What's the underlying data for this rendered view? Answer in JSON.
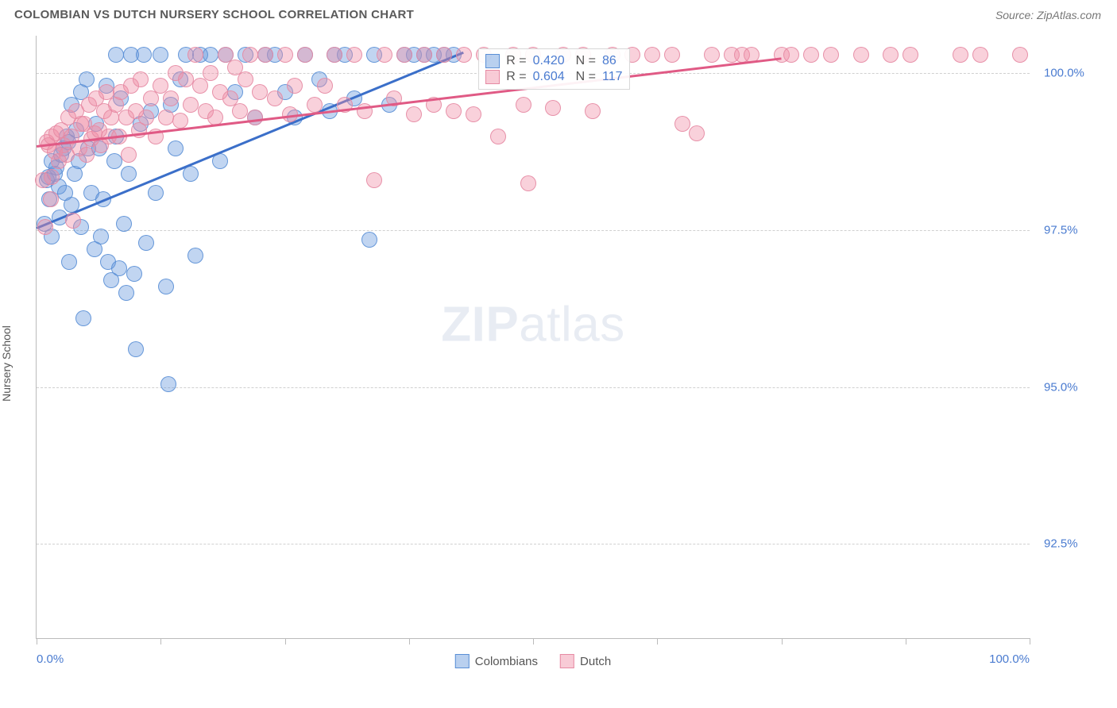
{
  "header": {
    "title": "COLOMBIAN VS DUTCH NURSERY SCHOOL CORRELATION CHART",
    "source": "Source: ZipAtlas.com"
  },
  "chart": {
    "type": "scatter",
    "ylabel": "Nursery School",
    "watermark_bold": "ZIP",
    "watermark_light": "atlas",
    "background_color": "#ffffff",
    "grid_color": "#d0d0d0",
    "axis_color": "#bbbbbb",
    "tick_label_color": "#4a7bd0",
    "xlim": [
      0,
      100
    ],
    "ylim": [
      91.0,
      100.6
    ],
    "yticks": [
      {
        "value": 100.0,
        "label": "100.0%"
      },
      {
        "value": 97.5,
        "label": "97.5%"
      },
      {
        "value": 95.0,
        "label": "95.0%"
      },
      {
        "value": 92.5,
        "label": "92.5%"
      }
    ],
    "xticks_major": [
      0,
      12.5,
      25,
      37.5,
      50,
      62.5,
      75,
      87.5,
      100
    ],
    "xtick_labels": [
      {
        "value": 0,
        "label": "0.0%"
      },
      {
        "value": 100,
        "label": "100.0%"
      }
    ],
    "stats_box": {
      "left_pct": 44.5,
      "top_y": 100.4,
      "rows": [
        {
          "swatch_fill": "rgba(100,150,220,0.45)",
          "swatch_border": "#5a8fd6",
          "r_label": "R =",
          "r_value": "0.420",
          "n_label": "N =",
          "n_value": " 86"
        },
        {
          "swatch_fill": "rgba(240,140,165,0.45)",
          "swatch_border": "#e68aa3",
          "r_label": "R =",
          "r_value": "0.604",
          "n_label": "N =",
          "n_value": "117"
        }
      ]
    },
    "legend": [
      {
        "swatch_fill": "rgba(100,150,220,0.45)",
        "swatch_border": "#5a8fd6",
        "label": "Colombians"
      },
      {
        "swatch_fill": "rgba(240,140,165,0.45)",
        "swatch_border": "#e68aa3",
        "label": "Dutch"
      }
    ],
    "series": [
      {
        "name": "Colombians",
        "fill": "rgba(100,150,220,0.40)",
        "stroke": "rgba(90,143,214,0.9)",
        "marker_radius": 10,
        "trend": {
          "x1": 0,
          "y1": 97.55,
          "x2": 43,
          "y2": 100.35,
          "color": "#3b6fc9"
        },
        "points": [
          [
            0.8,
            97.6
          ],
          [
            1.0,
            98.3
          ],
          [
            1.2,
            98.35
          ],
          [
            1.3,
            98.0
          ],
          [
            1.5,
            98.6
          ],
          [
            1.5,
            97.4
          ],
          [
            1.8,
            98.4
          ],
          [
            2.0,
            98.5
          ],
          [
            2.2,
            98.2
          ],
          [
            2.3,
            97.7
          ],
          [
            2.5,
            98.7
          ],
          [
            2.7,
            98.8
          ],
          [
            2.9,
            98.1
          ],
          [
            3.0,
            99.0
          ],
          [
            3.2,
            98.9
          ],
          [
            3.3,
            97.0
          ],
          [
            3.5,
            97.9
          ],
          [
            3.5,
            99.5
          ],
          [
            3.8,
            98.4
          ],
          [
            4.0,
            99.1
          ],
          [
            4.2,
            98.6
          ],
          [
            4.5,
            97.55
          ],
          [
            4.5,
            99.7
          ],
          [
            4.7,
            96.1
          ],
          [
            5.0,
            99.9
          ],
          [
            5.2,
            98.8
          ],
          [
            5.5,
            98.1
          ],
          [
            5.8,
            97.2
          ],
          [
            6.0,
            99.2
          ],
          [
            6.3,
            98.8
          ],
          [
            6.5,
            97.4
          ],
          [
            6.7,
            98.0
          ],
          [
            7.0,
            99.8
          ],
          [
            7.2,
            97.0
          ],
          [
            7.5,
            96.7
          ],
          [
            7.8,
            98.6
          ],
          [
            8.0,
            99.0
          ],
          [
            8.0,
            100.3
          ],
          [
            8.3,
            96.9
          ],
          [
            8.5,
            99.6
          ],
          [
            8.8,
            97.6
          ],
          [
            9.0,
            96.5
          ],
          [
            9.3,
            98.4
          ],
          [
            9.5,
            100.3
          ],
          [
            9.8,
            96.8
          ],
          [
            10.0,
            95.6
          ],
          [
            10.5,
            99.2
          ],
          [
            10.8,
            100.3
          ],
          [
            11.0,
            97.3
          ],
          [
            11.5,
            99.4
          ],
          [
            12.0,
            98.1
          ],
          [
            12.5,
            100.3
          ],
          [
            13.0,
            96.6
          ],
          [
            13.3,
            95.05
          ],
          [
            13.5,
            99.5
          ],
          [
            14.0,
            98.8
          ],
          [
            14.5,
            99.9
          ],
          [
            15.0,
            100.3
          ],
          [
            15.5,
            98.4
          ],
          [
            16.0,
            97.1
          ],
          [
            16.5,
            100.3
          ],
          [
            17.5,
            100.3
          ],
          [
            18.5,
            98.6
          ],
          [
            19.0,
            100.3
          ],
          [
            20.0,
            99.7
          ],
          [
            21.0,
            100.3
          ],
          [
            22.0,
            99.3
          ],
          [
            23.0,
            100.3
          ],
          [
            24.0,
            100.3
          ],
          [
            25.0,
            99.7
          ],
          [
            26.0,
            99.3
          ],
          [
            27.0,
            100.3
          ],
          [
            28.5,
            99.9
          ],
          [
            29.5,
            99.4
          ],
          [
            30.0,
            100.3
          ],
          [
            31.0,
            100.3
          ],
          [
            32.0,
            99.6
          ],
          [
            33.5,
            97.35
          ],
          [
            34.0,
            100.3
          ],
          [
            35.5,
            99.5
          ],
          [
            37.0,
            100.3
          ],
          [
            38.0,
            100.3
          ],
          [
            39.0,
            100.3
          ],
          [
            40.0,
            100.3
          ],
          [
            41.0,
            100.3
          ],
          [
            42.0,
            100.3
          ]
        ]
      },
      {
        "name": "Dutch",
        "fill": "rgba(240,140,165,0.40)",
        "stroke": "rgba(230,138,163,0.9)",
        "marker_radius": 10,
        "trend": {
          "x1": 0,
          "y1": 98.85,
          "x2": 75,
          "y2": 100.25,
          "color": "#e05a85"
        },
        "points": [
          [
            0.6,
            98.3
          ],
          [
            0.9,
            97.55
          ],
          [
            1.0,
            98.9
          ],
          [
            1.2,
            98.85
          ],
          [
            1.4,
            98.0
          ],
          [
            1.5,
            99.0
          ],
          [
            1.5,
            98.35
          ],
          [
            1.8,
            98.75
          ],
          [
            2.0,
            99.05
          ],
          [
            2.2,
            98.6
          ],
          [
            2.5,
            99.1
          ],
          [
            2.7,
            98.85
          ],
          [
            3.0,
            98.7
          ],
          [
            3.2,
            99.3
          ],
          [
            3.5,
            99.0
          ],
          [
            3.7,
            97.65
          ],
          [
            4.0,
            99.4
          ],
          [
            4.3,
            98.8
          ],
          [
            4.5,
            99.2
          ],
          [
            4.8,
            99.2
          ],
          [
            5.0,
            98.7
          ],
          [
            5.3,
            99.5
          ],
          [
            5.5,
            98.95
          ],
          [
            5.8,
            99.05
          ],
          [
            6.0,
            99.6
          ],
          [
            6.3,
            99.1
          ],
          [
            6.5,
            98.85
          ],
          [
            6.8,
            99.4
          ],
          [
            7.0,
            99.7
          ],
          [
            7.3,
            99.0
          ],
          [
            7.5,
            99.3
          ],
          [
            8.0,
            99.5
          ],
          [
            8.3,
            99.0
          ],
          [
            8.5,
            99.7
          ],
          [
            9.0,
            99.3
          ],
          [
            9.3,
            98.7
          ],
          [
            9.5,
            99.8
          ],
          [
            10.0,
            99.4
          ],
          [
            10.3,
            99.1
          ],
          [
            10.5,
            99.9
          ],
          [
            11.0,
            99.3
          ],
          [
            11.5,
            99.6
          ],
          [
            12.0,
            99.0
          ],
          [
            12.5,
            99.8
          ],
          [
            13.0,
            99.3
          ],
          [
            13.5,
            99.6
          ],
          [
            14.0,
            100.0
          ],
          [
            14.5,
            99.25
          ],
          [
            15.0,
            99.9
          ],
          [
            15.5,
            99.5
          ],
          [
            16.0,
            100.3
          ],
          [
            16.5,
            99.8
          ],
          [
            17.0,
            99.4
          ],
          [
            17.5,
            100.0
          ],
          [
            18.0,
            99.3
          ],
          [
            18.5,
            99.7
          ],
          [
            19.0,
            100.3
          ],
          [
            19.5,
            99.6
          ],
          [
            20.0,
            100.1
          ],
          [
            20.5,
            99.4
          ],
          [
            21.0,
            99.9
          ],
          [
            21.5,
            100.3
          ],
          [
            22.0,
            99.3
          ],
          [
            22.5,
            99.7
          ],
          [
            23.0,
            100.3
          ],
          [
            24.0,
            99.6
          ],
          [
            25.0,
            100.3
          ],
          [
            25.5,
            99.35
          ],
          [
            26.0,
            99.8
          ],
          [
            27.0,
            100.3
          ],
          [
            28.0,
            99.5
          ],
          [
            29.0,
            99.8
          ],
          [
            30.0,
            100.3
          ],
          [
            31.0,
            99.5
          ],
          [
            32.0,
            100.3
          ],
          [
            33.0,
            99.4
          ],
          [
            34.0,
            98.3
          ],
          [
            35.0,
            100.3
          ],
          [
            36.0,
            99.6
          ],
          [
            37.0,
            100.3
          ],
          [
            38.0,
            99.35
          ],
          [
            39.0,
            100.3
          ],
          [
            40.0,
            99.5
          ],
          [
            41.0,
            100.3
          ],
          [
            42.0,
            99.4
          ],
          [
            43.0,
            100.3
          ],
          [
            44.0,
            99.35
          ],
          [
            45.0,
            100.3
          ],
          [
            46.5,
            99.0
          ],
          [
            48.0,
            100.3
          ],
          [
            49.0,
            99.5
          ],
          [
            49.5,
            98.25
          ],
          [
            50.0,
            100.3
          ],
          [
            52.0,
            99.45
          ],
          [
            53.0,
            100.3
          ],
          [
            55.0,
            100.3
          ],
          [
            56.0,
            99.4
          ],
          [
            58.0,
            100.3
          ],
          [
            60.0,
            100.3
          ],
          [
            62.0,
            100.3
          ],
          [
            64.0,
            100.3
          ],
          [
            65.0,
            99.2
          ],
          [
            66.5,
            99.05
          ],
          [
            68.0,
            100.3
          ],
          [
            70.0,
            100.3
          ],
          [
            71.0,
            100.3
          ],
          [
            72.0,
            100.3
          ],
          [
            75.0,
            100.3
          ],
          [
            76.0,
            100.3
          ],
          [
            78.0,
            100.3
          ],
          [
            80.0,
            100.3
          ],
          [
            83.0,
            100.3
          ],
          [
            86.0,
            100.3
          ],
          [
            88.0,
            100.3
          ],
          [
            93.0,
            100.3
          ],
          [
            95.0,
            100.3
          ],
          [
            99.0,
            100.3
          ]
        ]
      }
    ]
  }
}
